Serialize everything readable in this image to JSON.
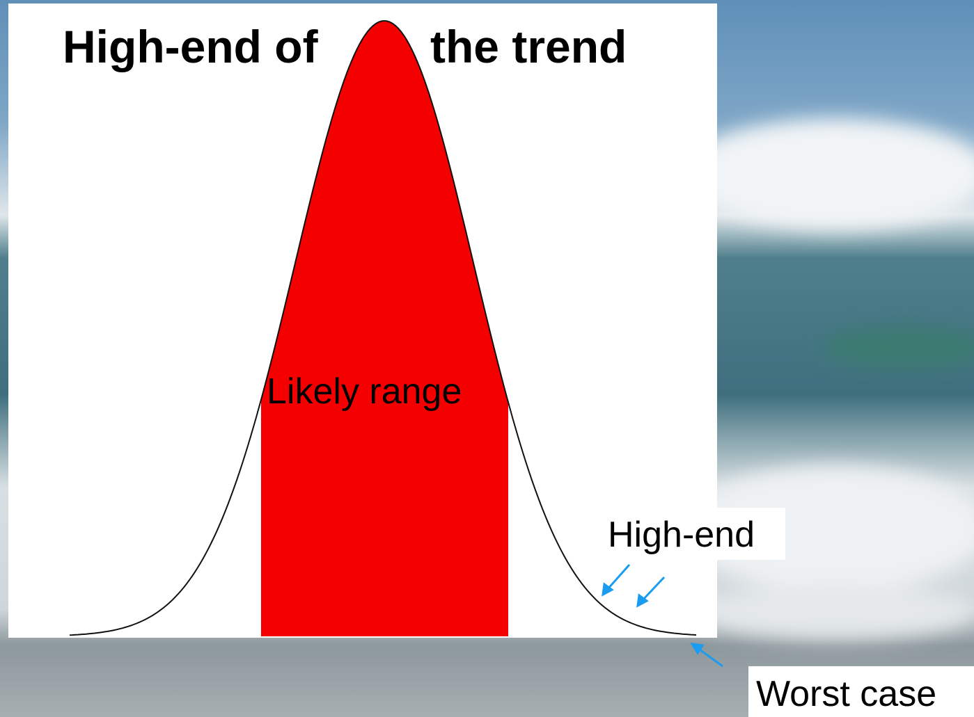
{
  "title": {
    "left": "High-end of",
    "right": "the trend"
  },
  "labels": {
    "likely": "Likely range",
    "high_end": "High-end",
    "worst": "Worst case"
  }
}
